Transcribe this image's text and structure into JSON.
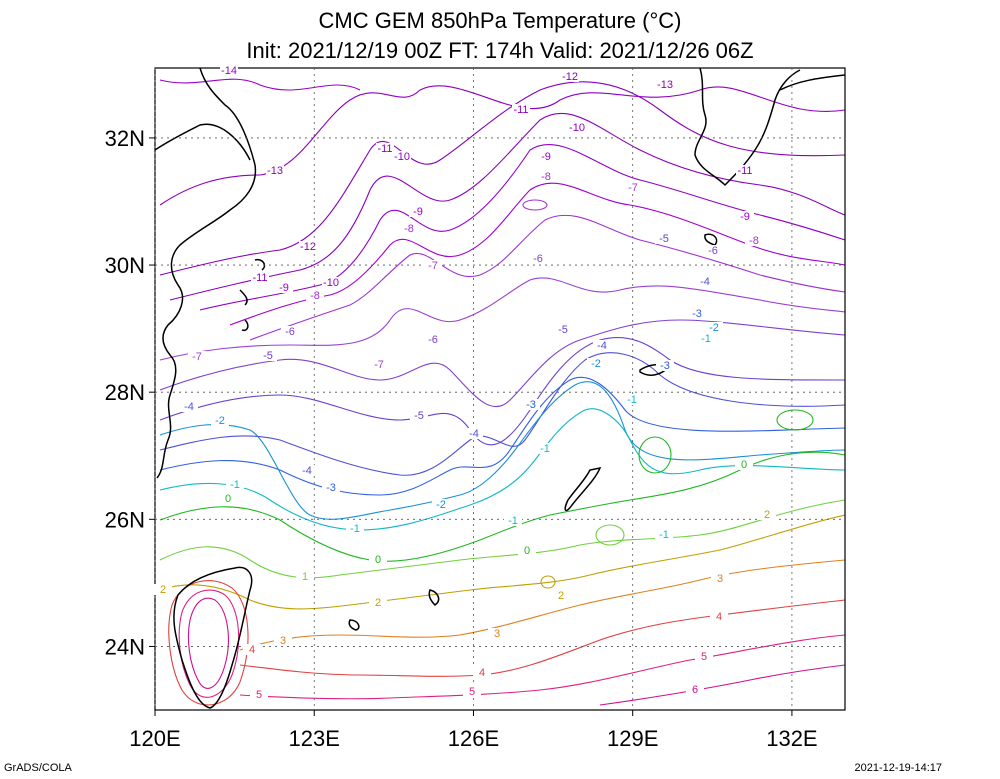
{
  "header": {
    "title_line1": "CMC GEM 850hPa Temperature (°C)",
    "title_line2": "Init: 2021/12/19 00Z  FT: 174h  Valid: 2021/12/26 06Z"
  },
  "map": {
    "lat_ticks": [
      {
        "value": 32,
        "label": "32N"
      },
      {
        "value": 30,
        "label": "30N"
      },
      {
        "value": 28,
        "label": "28N"
      },
      {
        "value": 26,
        "label": "26N"
      },
      {
        "value": 24,
        "label": "24N"
      }
    ],
    "lon_ticks": [
      {
        "value": 120,
        "label": "120E"
      },
      {
        "value": 123,
        "label": "123E"
      },
      {
        "value": 126,
        "label": "126E"
      },
      {
        "value": 129,
        "label": "129E"
      },
      {
        "value": 132,
        "label": "132E"
      }
    ],
    "contour_colors": {
      "-14": "#9a00c8",
      "-13": "#9000c0",
      "-12": "#8800b8",
      "-11": "#8a00c0",
      "-10": "#9000c8",
      "-9": "#a000d0",
      "-8": "#a030d8",
      "-7": "#9a40d0",
      "-6": "#8040d0",
      "-5": "#6a40d0",
      "-4": "#5050d8",
      "-3": "#3060e0",
      "-2": "#1890d8",
      "-1": "#10b8c8",
      "0": "#20b820",
      "1": "#70d040",
      "2": "#c0a000",
      "3": "#e08020",
      "4": "#e04040",
      "5": "#e02080",
      "6": "#d01090"
    }
  },
  "footer": {
    "left": "GrADS/COLA",
    "right": "2021-12-19-14:17"
  }
}
